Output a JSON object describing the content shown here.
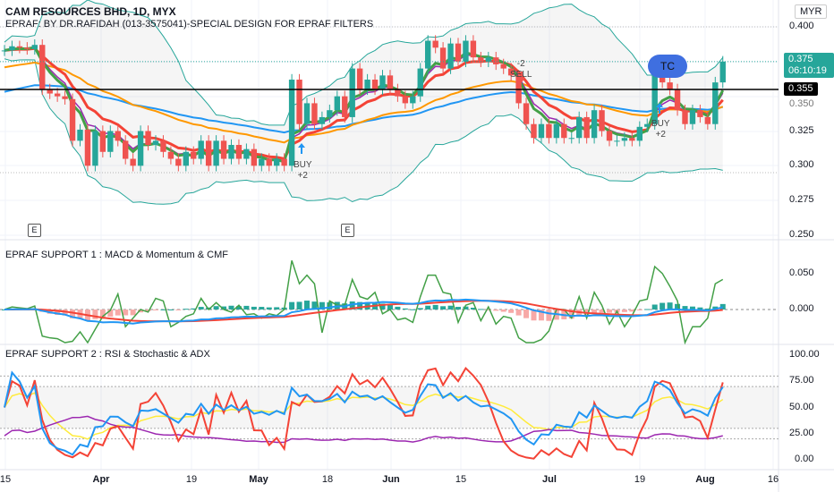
{
  "header": {
    "title": "CAM RESOURCES BHD, 1D, MYX",
    "indicator": "EPRAF: BY DR.RAFIDAH (013-3575041)-SPECIAL DESIGN FOR EPRAF FILTERS"
  },
  "currency": "MYR",
  "price_axis": [
    "0.400",
    "0.350",
    "0.325",
    "0.300",
    "0.275",
    "0.250"
  ],
  "last_price": {
    "value": "0.375",
    "countdown": "06:10:19",
    "color": "#26a69a"
  },
  "hline": {
    "value": "0.355"
  },
  "panel1": {
    "title": "EPRAF SUPPORT 1 : MACD & Momentum & CMF",
    "axis": [
      "0.050",
      "0.000"
    ]
  },
  "panel2": {
    "title": "EPRAF SUPPORT 2 : RSI & Stochastic & ADX",
    "axis": [
      "100.00",
      "75.00",
      "50.00",
      "25.00",
      "0.00"
    ]
  },
  "time_axis": [
    "15",
    "Apr",
    "19",
    "May",
    "18",
    "Jun",
    "15",
    "Jul",
    "19",
    "Aug",
    "16"
  ],
  "signals": [
    {
      "line1": "BUY",
      "line2": "+2"
    },
    {
      "line1": "-2",
      "line2": "SELL"
    },
    {
      "line1": "BUY",
      "line2": "+2"
    }
  ],
  "bubble": "TC",
  "earnings_marker": "E",
  "colors": {
    "up": "#26a69a",
    "down": "#ef5350",
    "ma_fast": "#43a047",
    "ma_mid": "#9c27b0",
    "ma_slow": "#f44336",
    "ma_30": "#ff9800",
    "ma_50": "#2196f3",
    "bands": "#26a69a"
  },
  "closes": [
    0.383,
    0.386,
    0.385,
    0.384,
    0.387,
    0.355,
    0.352,
    0.35,
    0.348,
    0.318,
    0.326,
    0.3,
    0.325,
    0.31,
    0.325,
    0.318,
    0.305,
    0.3,
    0.325,
    0.315,
    0.318,
    0.31,
    0.305,
    0.3,
    0.31,
    0.305,
    0.318,
    0.3,
    0.318,
    0.305,
    0.315,
    0.305,
    0.312,
    0.3,
    0.305,
    0.3,
    0.305,
    0.3,
    0.362,
    0.33,
    0.345,
    0.33,
    0.335,
    0.34,
    0.35,
    0.335,
    0.37,
    0.355,
    0.362,
    0.355,
    0.365,
    0.355,
    0.35,
    0.345,
    0.35,
    0.37,
    0.39,
    0.385,
    0.37,
    0.388,
    0.375,
    0.39,
    0.378,
    0.375,
    0.378,
    0.373,
    0.37,
    0.365,
    0.345,
    0.33,
    0.32,
    0.33,
    0.32,
    0.33,
    0.32,
    0.32,
    0.335,
    0.32,
    0.34,
    0.325,
    0.318,
    0.318,
    0.32,
    0.318,
    0.328,
    0.33,
    0.37,
    0.36,
    0.355,
    0.34,
    0.33,
    0.34,
    0.335,
    0.33,
    0.36,
    0.375
  ]
}
